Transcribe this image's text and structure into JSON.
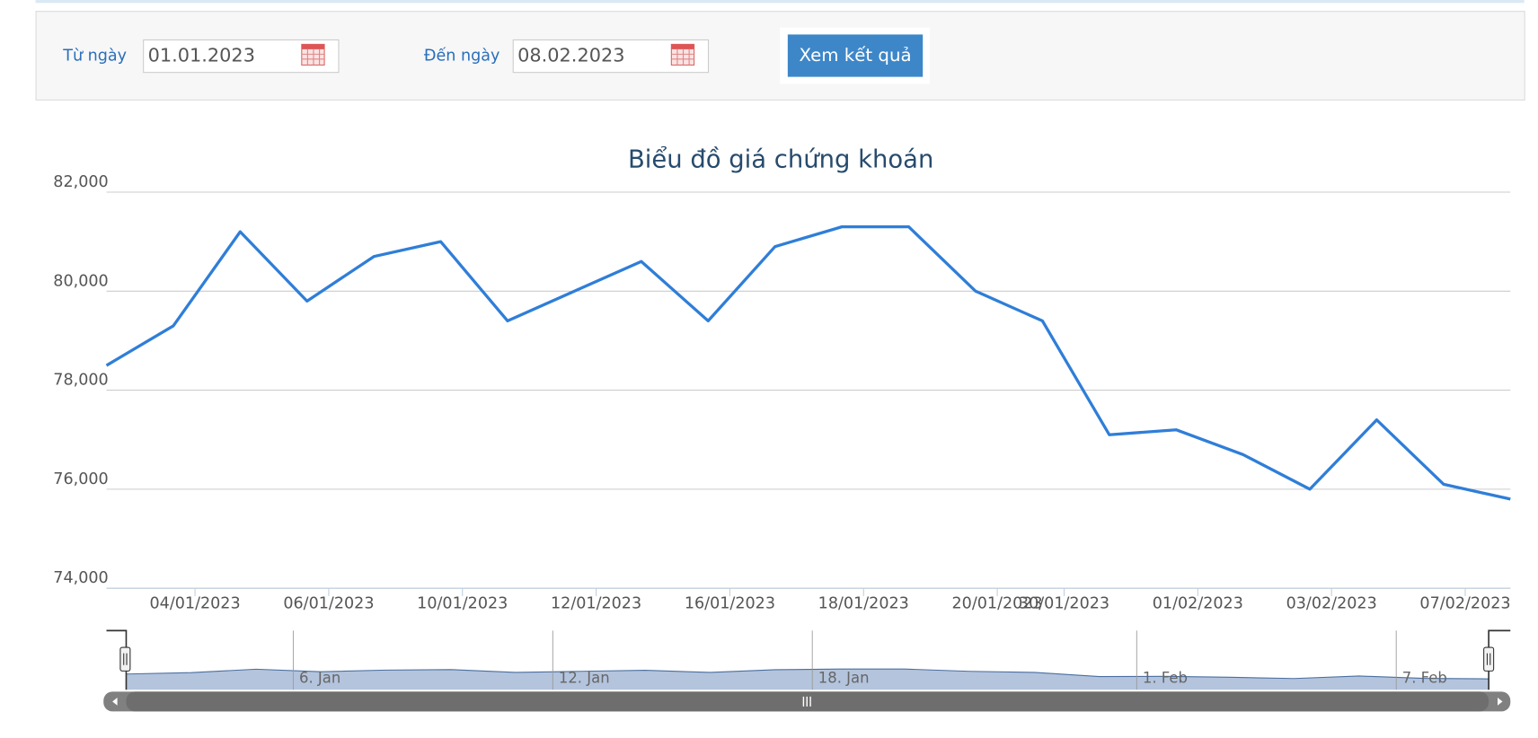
{
  "form": {
    "from_label": "Từ ngày",
    "from_value": "01.01.2023",
    "to_label": "Đến ngày",
    "to_value": "08.02.2023",
    "button": "Xem kết quả"
  },
  "chart_data": {
    "type": "line",
    "title": "Biểu đồ giá chứng khoán",
    "categories": [
      null,
      "04/01/2023",
      null,
      "06/01/2023",
      null,
      "10/01/2023",
      null,
      "12/01/2023",
      null,
      "16/01/2023",
      null,
      "18/01/2023",
      null,
      "20/01/2023",
      "30/01/2023",
      null,
      "01/02/2023",
      null,
      "03/02/2023",
      null,
      "07/02/2023",
      null
    ],
    "series": [
      {
        "name": "Giá",
        "color": "#2f7ed8",
        "values": [
          78500,
          79300,
          81200,
          79800,
          80700,
          81000,
          79400,
          80000,
          80600,
          79400,
          80900,
          81300,
          81300,
          80000,
          79400,
          77100,
          77200,
          76700,
          76000,
          77400,
          76100,
          75800
        ]
      }
    ],
    "ylim": [
      74000,
      82000
    ],
    "yticks": [
      {
        "value": 74000,
        "label": "74,000"
      },
      {
        "value": 76000,
        "label": "76,000"
      },
      {
        "value": 78000,
        "label": "78,000"
      },
      {
        "value": 80000,
        "label": "80,000"
      },
      {
        "value": 82000,
        "label": "82,000"
      }
    ],
    "grid": true,
    "navigator": {
      "labels": [
        "6. Jan",
        "12. Jan",
        "18. Jan",
        "1. Feb",
        "7. Feb"
      ],
      "color": "#b4c4dd"
    }
  }
}
